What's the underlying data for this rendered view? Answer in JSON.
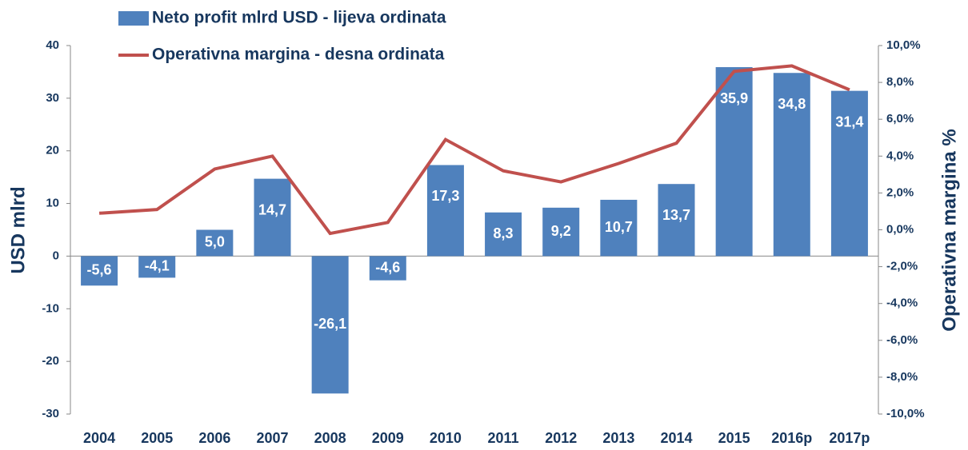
{
  "chart_data": {
    "type": "bar",
    "categories": [
      "2004",
      "2005",
      "2006",
      "2007",
      "2008",
      "2009",
      "2010",
      "2011",
      "2012",
      "2013",
      "2014",
      "2015",
      "2016p",
      "2017p"
    ],
    "series": [
      {
        "name": "Neto profit mlrd USD - lijeva ordinata",
        "type": "bar",
        "color": "#4f81bd",
        "values": [
          -5.6,
          -4.1,
          5.0,
          14.7,
          -26.1,
          -4.6,
          17.3,
          8.3,
          9.2,
          10.7,
          13.7,
          35.9,
          34.8,
          31.4
        ],
        "value_labels": [
          "-5,6",
          "-4,1",
          "5,0",
          "14,7",
          "-26,1",
          "-4,6",
          "17,3",
          "8,3",
          "9,2",
          "10,7",
          "13,7",
          "35,9",
          "34,8",
          "31,4"
        ]
      },
      {
        "name": "Operativna margina - desna ordinata",
        "type": "line",
        "color": "#c0504d",
        "axis": "y2",
        "values": [
          0.9,
          1.1,
          3.3,
          4.0,
          -0.2,
          0.4,
          4.9,
          3.2,
          2.6,
          3.6,
          4.7,
          8.6,
          8.9,
          7.6
        ]
      }
    ],
    "ylabel": "USD mlrd",
    "y2label": "Operativna margina %",
    "ylim": [
      -30,
      40
    ],
    "yticks": [
      -30,
      -20,
      -10,
      0,
      10,
      20,
      30,
      40
    ],
    "y2lim": [
      -10,
      10
    ],
    "y2ticks": [
      {
        "value": -10,
        "label": "-10,0%"
      },
      {
        "value": -8,
        "label": "-8,0%"
      },
      {
        "value": -6,
        "label": "-6,0%"
      },
      {
        "value": -4,
        "label": "-4,0%"
      },
      {
        "value": -2,
        "label": "-2,0%"
      },
      {
        "value": 0,
        "label": "0,0%"
      },
      {
        "value": 2,
        "label": "2,0%"
      },
      {
        "value": 4,
        "label": "4,0%"
      },
      {
        "value": 6,
        "label": "6,0%"
      },
      {
        "value": 8,
        "label": "8,0%"
      },
      {
        "value": 10,
        "label": "10,0%"
      }
    ],
    "legend": "top"
  }
}
